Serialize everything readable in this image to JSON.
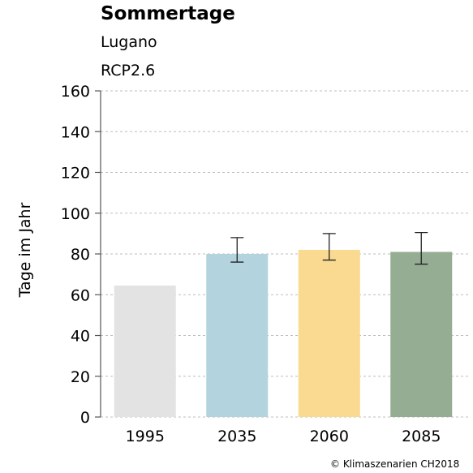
{
  "chart_data": {
    "type": "bar",
    "title": "Sommertage",
    "subtitle": [
      "Lugano",
      "RCP2.6"
    ],
    "ylabel": "Tage im Jahr",
    "xlabel": "",
    "ylim": [
      0,
      160
    ],
    "yticks": [
      0,
      20,
      40,
      60,
      80,
      100,
      120,
      140,
      160
    ],
    "grid": true,
    "categories": [
      "1995",
      "2035",
      "2060",
      "2085"
    ],
    "values": [
      64.5,
      80,
      82,
      81
    ],
    "error_low": [
      null,
      76,
      77,
      75
    ],
    "error_high": [
      null,
      88,
      90,
      90.5
    ],
    "colors": [
      "#e3e3e3",
      "#b3d4de",
      "#f9da90",
      "#95ad93"
    ]
  },
  "credit": "© Klimaszenarien CH2018"
}
